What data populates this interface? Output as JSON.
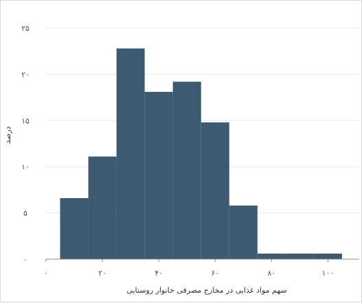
{
  "chart_data": {
    "type": "bar",
    "subtype": "histogram",
    "xlabel": "سهم مواد غذایی در مخارج مصرفی خانوار روستایی",
    "ylabel": "درصد",
    "x_ticks": [
      0,
      20,
      40,
      60,
      80,
      100
    ],
    "x_tick_labels": [
      "۰",
      "۲۰",
      "۴۰",
      "۶۰",
      "۸۰",
      "۱۰۰"
    ],
    "y_ticks": [
      0,
      5,
      10,
      15,
      20,
      25
    ],
    "y_tick_labels": [
      "۰",
      "۵",
      "۱۰",
      "۱۵",
      "۲۰",
      "۲۵"
    ],
    "xlim": [
      0,
      100
    ],
    "ylim": [
      0,
      25
    ],
    "bins": [
      {
        "start": 5,
        "end": 15,
        "value": 6.6
      },
      {
        "start": 15,
        "end": 25,
        "value": 11.1
      },
      {
        "start": 25,
        "end": 35,
        "value": 22.8
      },
      {
        "start": 35,
        "end": 45,
        "value": 18.1
      },
      {
        "start": 45,
        "end": 55,
        "value": 19.2
      },
      {
        "start": 55,
        "end": 65,
        "value": 14.8
      },
      {
        "start": 65,
        "end": 75,
        "value": 5.8
      },
      {
        "start": 75,
        "end": 85,
        "value": 0.6
      },
      {
        "start": 85,
        "end": 95,
        "value": 0.6
      },
      {
        "start": 95,
        "end": 105,
        "value": 0.6
      }
    ],
    "bar_color": "#3d5a73",
    "grid": true,
    "grid_color": "#e6ecf0"
  }
}
